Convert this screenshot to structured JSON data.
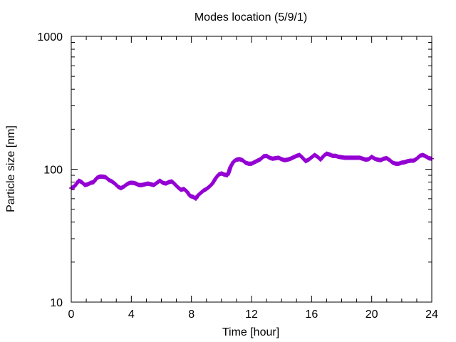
{
  "chart_data": {
    "type": "scatter",
    "title": "Modes location (5/9/1)",
    "xlabel": "Time [hour]",
    "ylabel": "Particle size [nm]",
    "xlim": [
      0,
      24
    ],
    "ylim": [
      10,
      1000
    ],
    "yscale": "log",
    "x_ticks": [
      0,
      4,
      8,
      12,
      16,
      20,
      24
    ],
    "y_ticks": [
      10,
      100,
      1000
    ],
    "x_tick_labels": [
      "0",
      "4",
      "8",
      "12",
      "16",
      "20",
      "24"
    ],
    "y_tick_labels": [
      "10",
      "100",
      "1000"
    ],
    "grid": false,
    "series": [
      {
        "color": "#9400d3",
        "marker": "plus",
        "points": [
          [
            0.0,
            72
          ],
          [
            0.2,
            74
          ],
          [
            0.4,
            79
          ],
          [
            0.5,
            82
          ],
          [
            0.7,
            80
          ],
          [
            0.9,
            76
          ],
          [
            1.1,
            77
          ],
          [
            1.3,
            79
          ],
          [
            1.5,
            80
          ],
          [
            1.7,
            86
          ],
          [
            1.9,
            88
          ],
          [
            2.1,
            88
          ],
          [
            2.3,
            87
          ],
          [
            2.5,
            83
          ],
          [
            2.7,
            81
          ],
          [
            2.9,
            78
          ],
          [
            3.1,
            74
          ],
          [
            3.3,
            72
          ],
          [
            3.5,
            74
          ],
          [
            3.7,
            77
          ],
          [
            3.9,
            79
          ],
          [
            4.1,
            79
          ],
          [
            4.3,
            78
          ],
          [
            4.5,
            76
          ],
          [
            4.7,
            76
          ],
          [
            4.9,
            77
          ],
          [
            5.1,
            78
          ],
          [
            5.3,
            77
          ],
          [
            5.5,
            76
          ],
          [
            5.7,
            79
          ],
          [
            5.9,
            82
          ],
          [
            6.1,
            79
          ],
          [
            6.3,
            78
          ],
          [
            6.5,
            80
          ],
          [
            6.7,
            81
          ],
          [
            6.9,
            77
          ],
          [
            7.1,
            73
          ],
          [
            7.3,
            70
          ],
          [
            7.5,
            71
          ],
          [
            7.7,
            68
          ],
          [
            7.9,
            63
          ],
          [
            8.1,
            62
          ],
          [
            8.3,
            60
          ],
          [
            8.4,
            63
          ],
          [
            8.6,
            66
          ],
          [
            8.8,
            69
          ],
          [
            9.0,
            71
          ],
          [
            9.2,
            74
          ],
          [
            9.4,
            78
          ],
          [
            9.6,
            85
          ],
          [
            9.8,
            91
          ],
          [
            10.0,
            93
          ],
          [
            10.2,
            91
          ],
          [
            10.4,
            90
          ],
          [
            10.5,
            96
          ],
          [
            10.6,
            104
          ],
          [
            10.8,
            114
          ],
          [
            11.0,
            118
          ],
          [
            11.2,
            119
          ],
          [
            11.4,
            117
          ],
          [
            11.6,
            112
          ],
          [
            11.8,
            110
          ],
          [
            12.0,
            110
          ],
          [
            12.2,
            113
          ],
          [
            12.4,
            116
          ],
          [
            12.6,
            119
          ],
          [
            12.8,
            125
          ],
          [
            13.0,
            126
          ],
          [
            13.2,
            122
          ],
          [
            13.4,
            120
          ],
          [
            13.6,
            121
          ],
          [
            13.8,
            122
          ],
          [
            14.0,
            119
          ],
          [
            14.2,
            117
          ],
          [
            14.4,
            118
          ],
          [
            14.6,
            120
          ],
          [
            14.8,
            123
          ],
          [
            15.0,
            126
          ],
          [
            15.2,
            128
          ],
          [
            15.4,
            122
          ],
          [
            15.6,
            115
          ],
          [
            15.8,
            118
          ],
          [
            16.0,
            123
          ],
          [
            16.2,
            128
          ],
          [
            16.4,
            124
          ],
          [
            16.6,
            118
          ],
          [
            16.8,
            126
          ],
          [
            17.0,
            131
          ],
          [
            17.2,
            129
          ],
          [
            17.4,
            126
          ],
          [
            17.6,
            126
          ],
          [
            17.8,
            124
          ],
          [
            18.0,
            123
          ],
          [
            18.2,
            122
          ],
          [
            18.4,
            122
          ],
          [
            18.6,
            122
          ],
          [
            18.8,
            122
          ],
          [
            19.0,
            122
          ],
          [
            19.2,
            122
          ],
          [
            19.4,
            120
          ],
          [
            19.6,
            118
          ],
          [
            19.8,
            119
          ],
          [
            20.0,
            124
          ],
          [
            20.2,
            120
          ],
          [
            20.4,
            118
          ],
          [
            20.6,
            117
          ],
          [
            20.8,
            120
          ],
          [
            21.0,
            121
          ],
          [
            21.2,
            117
          ],
          [
            21.4,
            112
          ],
          [
            21.6,
            110
          ],
          [
            21.8,
            110
          ],
          [
            22.0,
            112
          ],
          [
            22.2,
            113
          ],
          [
            22.4,
            115
          ],
          [
            22.6,
            116
          ],
          [
            22.8,
            116
          ],
          [
            23.0,
            120
          ],
          [
            23.2,
            126
          ],
          [
            23.4,
            128
          ],
          [
            23.6,
            125
          ],
          [
            23.8,
            121
          ],
          [
            24.0,
            120
          ]
        ]
      }
    ]
  }
}
